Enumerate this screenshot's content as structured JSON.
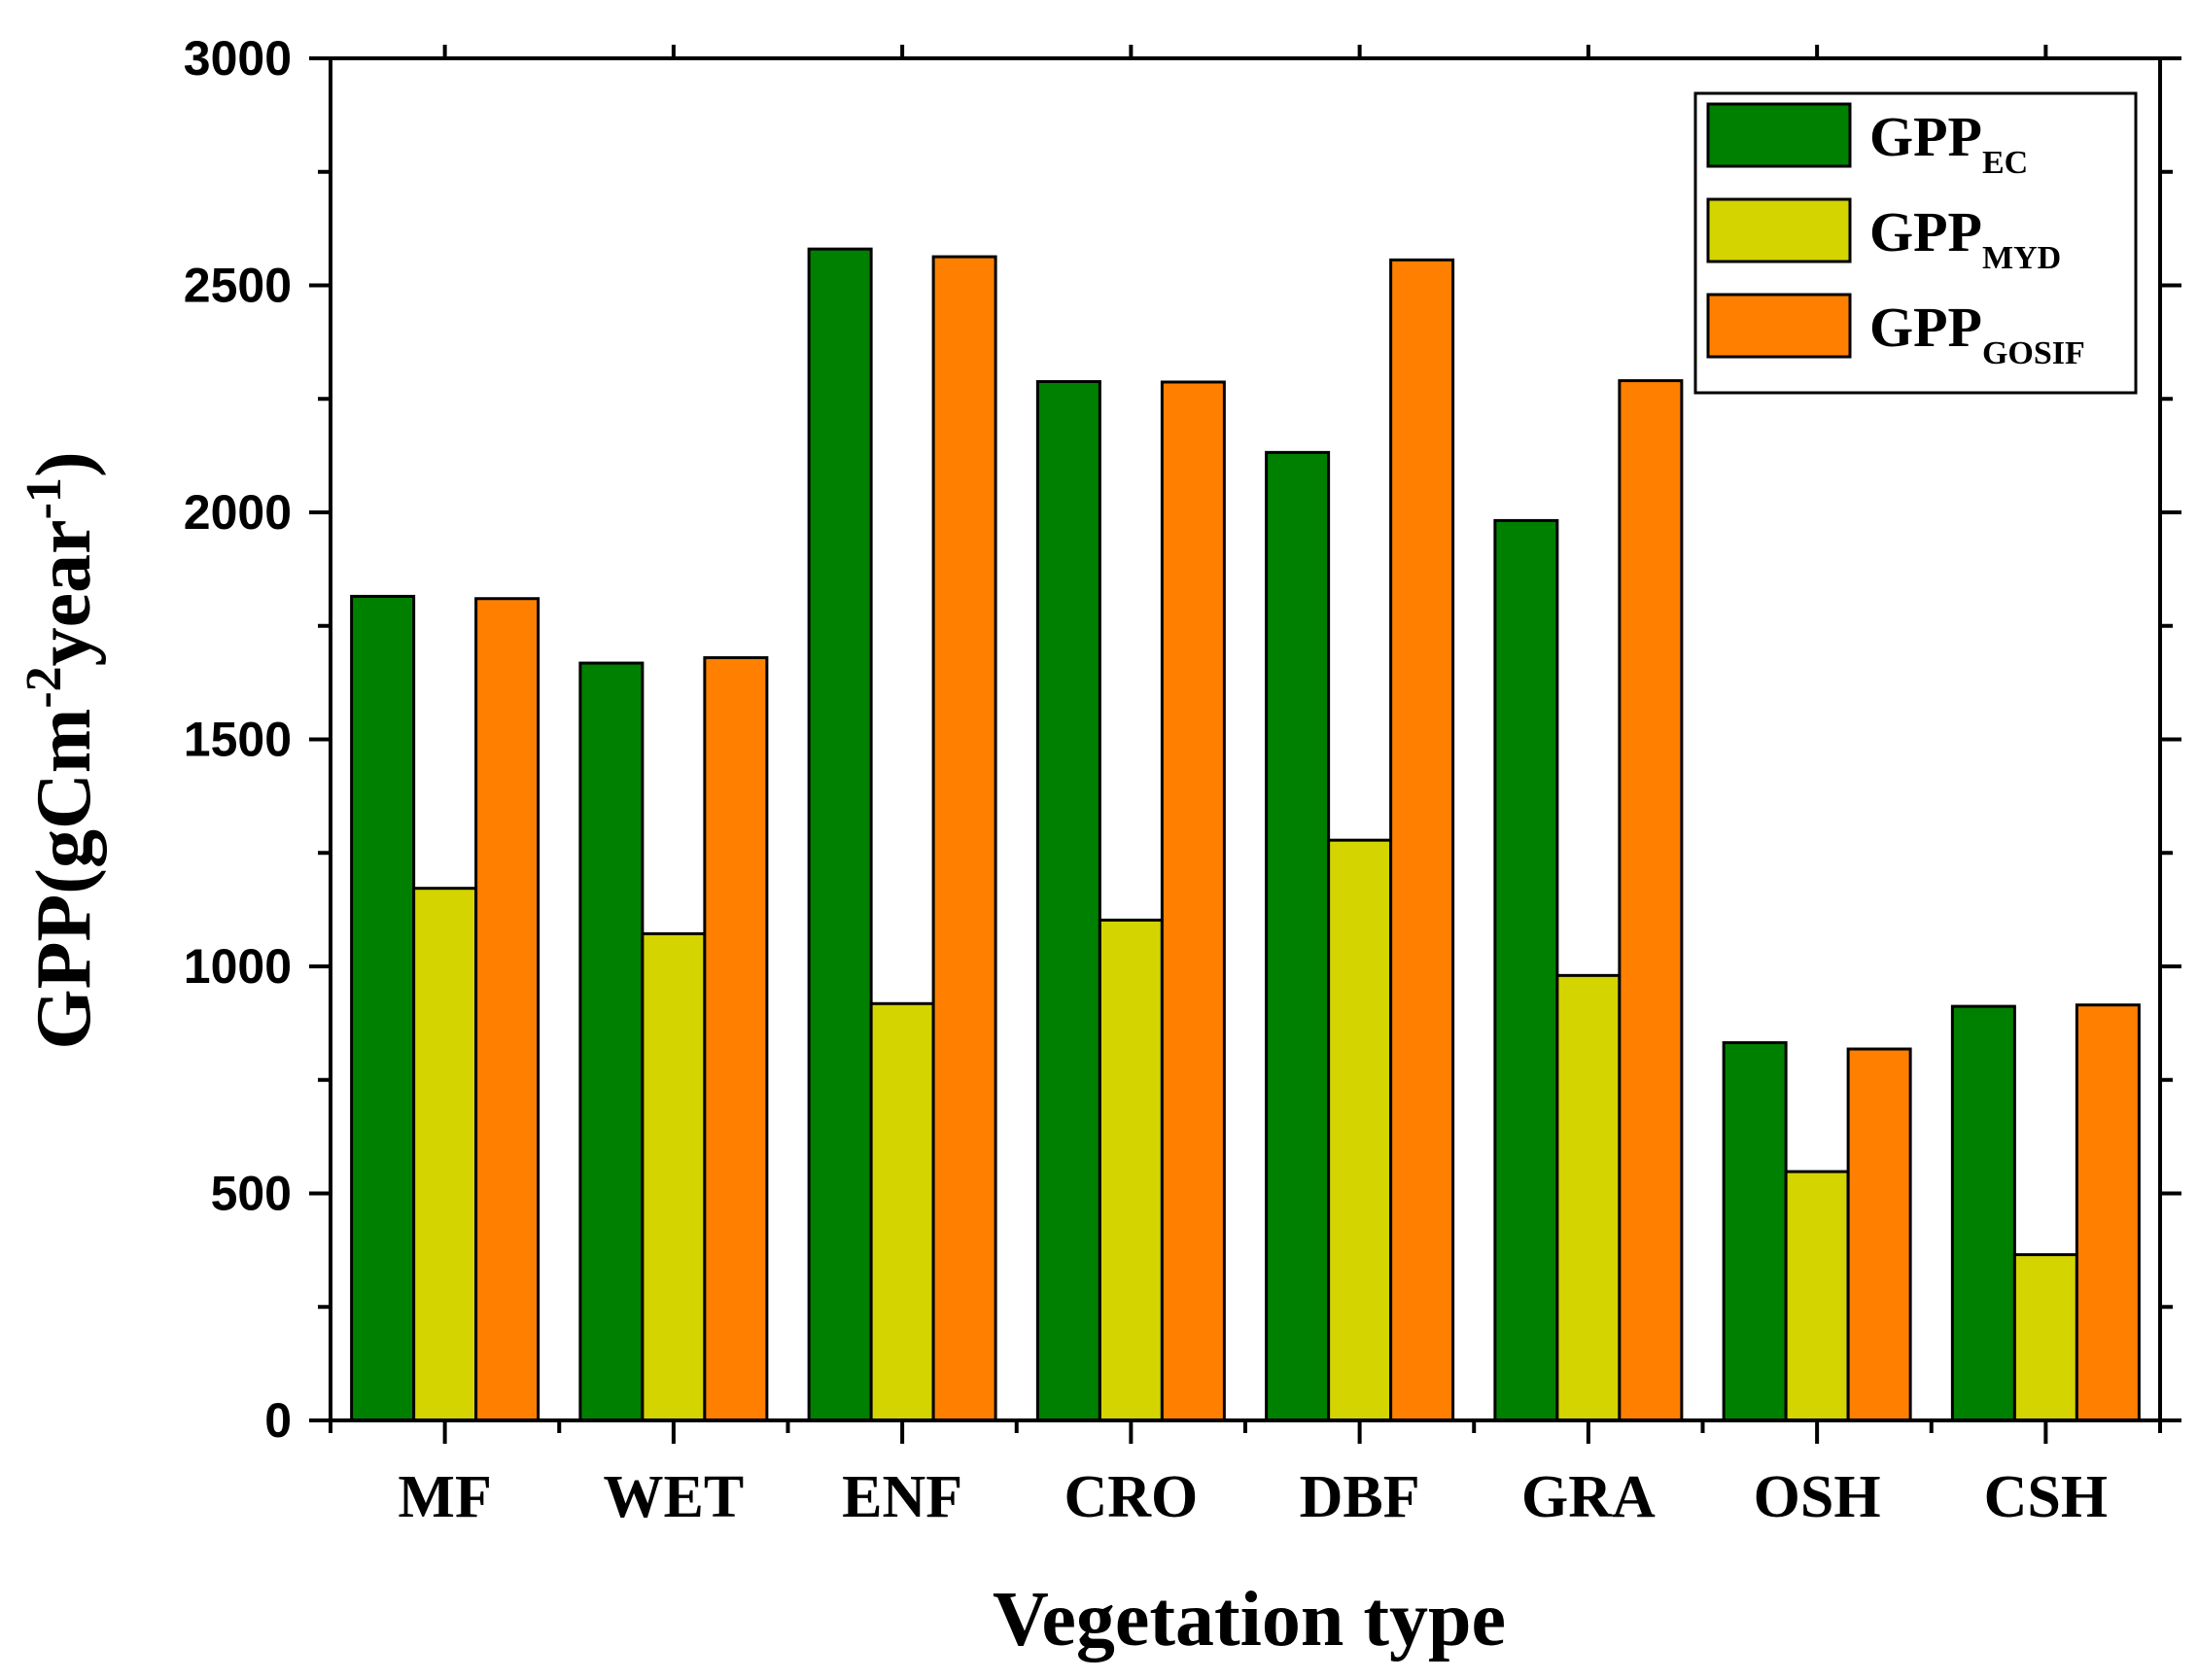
{
  "chart_data": {
    "type": "bar",
    "title": "",
    "xlabel": "Vegetation type",
    "ylabel": {
      "main": "GPP(gCm",
      "exp1": "-2",
      "mid": "year",
      "exp2": "-1",
      "close": ")"
    },
    "ylim": [
      0,
      3000
    ],
    "yticks": [
      0,
      500,
      1000,
      1500,
      2000,
      2500,
      3000
    ],
    "categories": [
      "MF",
      "WET",
      "ENF",
      "CRO",
      "DBF",
      "GRA",
      "OSH",
      "CSH"
    ],
    "series": [
      {
        "name": "GPP",
        "subscript": "EC",
        "color": "#008000",
        "values": [
          1815,
          1668,
          2580,
          2288,
          2132,
          1982,
          832,
          912
        ]
      },
      {
        "name": "GPP",
        "subscript": "MYD",
        "color": "#D4D400",
        "values": [
          1172,
          1072,
          918,
          1102,
          1278,
          980,
          548,
          365
        ]
      },
      {
        "name": "GPP",
        "subscript": "GOSIF",
        "color": "#FF8000",
        "values": [
          1810,
          1680,
          2563,
          2287,
          2556,
          2290,
          818,
          915
        ]
      }
    ],
    "legend_position": "top-right",
    "grid": false
  }
}
